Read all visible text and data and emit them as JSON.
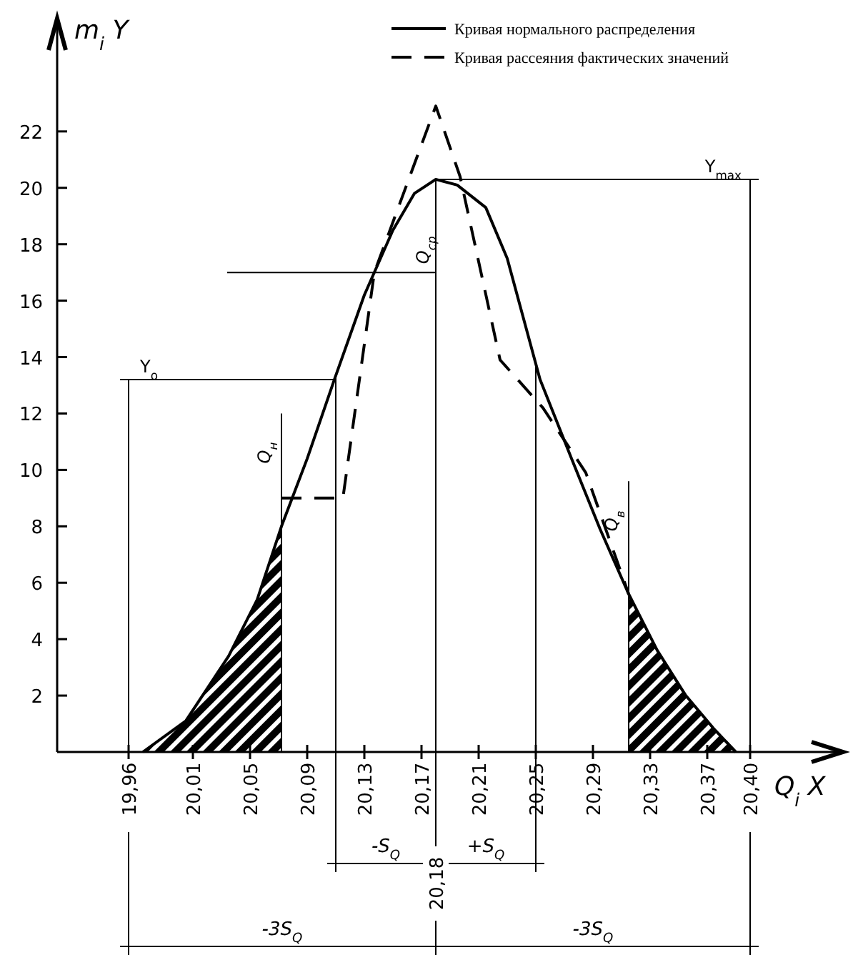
{
  "chart_data": {
    "type": "line",
    "xlabel": "Q$_{i}$ X",
    "ylabel": "m$_{i}$ Y",
    "xlim": [
      19.915,
      20.465
    ],
    "ylim": [
      0,
      26
    ],
    "xticks": [
      {
        "value": 19.965,
        "label": "19,96"
      },
      {
        "value": 20.01,
        "label": "20,01"
      },
      {
        "value": 20.05,
        "label": "20,05"
      },
      {
        "value": 20.09,
        "label": "20,09"
      },
      {
        "value": 20.13,
        "label": "20,13"
      },
      {
        "value": 20.17,
        "label": "20,17"
      },
      {
        "value": 20.21,
        "label": "20,21"
      },
      {
        "value": 20.25,
        "label": "20,25"
      },
      {
        "value": 20.29,
        "label": "20,29"
      },
      {
        "value": 20.33,
        "label": "20,33"
      },
      {
        "value": 20.37,
        "label": "20,37"
      },
      {
        "value": 20.4,
        "label": "20,40"
      }
    ],
    "yticks": [
      2,
      4,
      6,
      8,
      10,
      12,
      14,
      16,
      18,
      20,
      22
    ],
    "legend": "top right",
    "grid": false,
    "marker": "none",
    "series": [
      {
        "name": "Кривая нормального распределения",
        "color": "#000000",
        "line_style": "solid",
        "x": [
          19.975,
          20.005,
          20.035,
          20.055,
          20.072,
          20.09,
          20.109,
          20.13,
          20.15,
          20.165,
          20.18,
          20.195,
          20.215,
          20.23,
          20.253,
          20.275,
          20.295,
          20.315,
          20.335,
          20.355,
          20.375,
          20.39
        ],
        "values": [
          0,
          1.1,
          3.4,
          5.4,
          8,
          10.4,
          13.2,
          16.2,
          18.5,
          19.8,
          20.3,
          20.1,
          19.3,
          17.5,
          13.2,
          10.4,
          7.9,
          5.6,
          3.6,
          2,
          0.8,
          0
        ]
      },
      {
        "name": "Кривая рассеяния фактических значений",
        "color": "#000000",
        "line_style": "dashed",
        "x": [
          20.072,
          20.115,
          20.137,
          20.18,
          20.197,
          20.225,
          20.255,
          20.285,
          20.315
        ],
        "values": [
          9,
          9,
          17,
          22.9,
          20.4,
          13.9,
          12.2,
          9.9,
          5.6
        ]
      }
    ],
    "bands": [
      {
        "axis": "x",
        "from": 19.975,
        "to": 20.072
      },
      {
        "axis": "x",
        "from": 20.315,
        "to": 20.39
      }
    ],
    "ref_lines": [
      {
        "axis": "x",
        "value": 20.072,
        "label": "Q$_{н}$"
      },
      {
        "axis": "x",
        "value": 20.18,
        "label": "Q$_{ср}$"
      },
      {
        "axis": "x",
        "value": 20.315,
        "label": "Q$_{в}$"
      },
      {
        "axis": "x",
        "value": 20.11
      },
      {
        "axis": "x",
        "value": 20.25
      },
      {
        "axis": "x",
        "value": 19.965
      },
      {
        "axis": "x",
        "value": 20.4
      },
      {
        "axis": "y",
        "value": 13.2,
        "label": "Y$_{о}$"
      },
      {
        "axis": "y",
        "value": 20.3,
        "label": "Y$_{max}$"
      }
    ],
    "annotations": [
      "-S$_{Q}$",
      "+S$_{Q}$",
      {
        "text": "20,18",
        "x": 20.18
      },
      "-3S$_{Q}$",
      "-3S$_{Q}$"
    ]
  }
}
